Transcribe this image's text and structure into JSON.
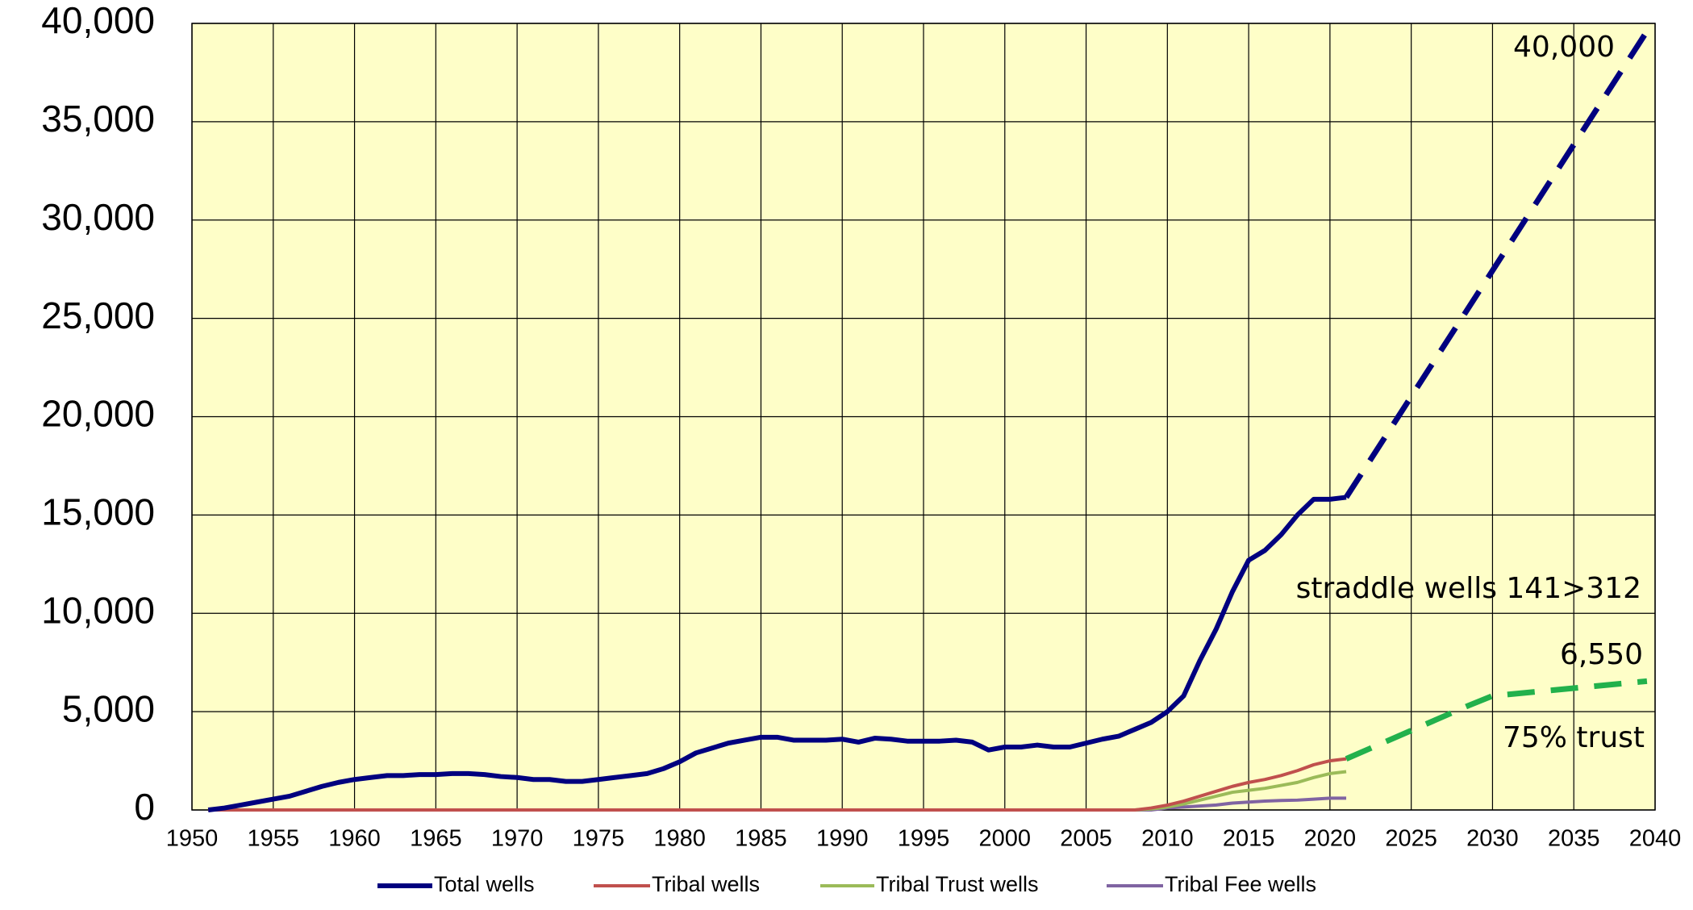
{
  "chart_data": {
    "type": "line",
    "x": [
      1951,
      1952,
      1953,
      1954,
      1955,
      1956,
      1957,
      1958,
      1959,
      1960,
      1961,
      1962,
      1963,
      1964,
      1965,
      1966,
      1967,
      1968,
      1969,
      1970,
      1971,
      1972,
      1973,
      1974,
      1975,
      1976,
      1977,
      1978,
      1979,
      1980,
      1981,
      1982,
      1983,
      1984,
      1985,
      1986,
      1987,
      1988,
      1989,
      1990,
      1991,
      1992,
      1993,
      1994,
      1995,
      1996,
      1997,
      1998,
      1999,
      2000,
      2001,
      2002,
      2003,
      2004,
      2005,
      2006,
      2007,
      2008,
      2009,
      2010,
      2011,
      2012,
      2013,
      2014,
      2015,
      2016,
      2017,
      2018,
      2019,
      2020,
      2021
    ],
    "series": [
      {
        "name": "Total wells",
        "color": "#00007f",
        "values": [
          0,
          100,
          250,
          400,
          550,
          700,
          950,
          1200,
          1400,
          1550,
          1650,
          1750,
          1750,
          1800,
          1800,
          1850,
          1850,
          1800,
          1700,
          1650,
          1550,
          1550,
          1450,
          1450,
          1550,
          1650,
          1750,
          1850,
          2100,
          2450,
          2900,
          3150,
          3400,
          3550,
          3700,
          3700,
          3550,
          3550,
          3550,
          3600,
          3450,
          3650,
          3600,
          3500,
          3500,
          3500,
          3550,
          3450,
          3050,
          3200,
          3200,
          3300,
          3200,
          3200,
          3400,
          3600,
          3750,
          4100,
          4450,
          5000,
          5800,
          7600,
          9200,
          11100,
          12700,
          13200,
          14000,
          15000,
          15800,
          15800,
          15900
        ]
      },
      {
        "name": "Tribal wells",
        "color": "#c0504d",
        "values": [
          0,
          0,
          0,
          0,
          0,
          0,
          0,
          0,
          0,
          0,
          0,
          0,
          0,
          0,
          0,
          0,
          0,
          0,
          0,
          0,
          0,
          0,
          0,
          0,
          0,
          0,
          0,
          0,
          0,
          0,
          0,
          0,
          0,
          0,
          0,
          0,
          0,
          0,
          0,
          0,
          0,
          0,
          0,
          0,
          0,
          0,
          0,
          0,
          0,
          0,
          0,
          0,
          0,
          0,
          0,
          0,
          0,
          0,
          100,
          250,
          450,
          700,
          950,
          1200,
          1400,
          1550,
          1750,
          2000,
          2300,
          2500,
          2600
        ]
      },
      {
        "name": "Tribal Trust wells",
        "color": "#9bbb59",
        "values": [
          0,
          0,
          0,
          0,
          0,
          0,
          0,
          0,
          0,
          0,
          0,
          0,
          0,
          0,
          0,
          0,
          0,
          0,
          0,
          0,
          0,
          0,
          0,
          0,
          0,
          0,
          0,
          0,
          0,
          0,
          0,
          0,
          0,
          0,
          0,
          0,
          0,
          0,
          0,
          0,
          0,
          0,
          0,
          0,
          0,
          0,
          0,
          0,
          0,
          0,
          0,
          0,
          0,
          0,
          0,
          0,
          0,
          0,
          50,
          150,
          300,
          500,
          700,
          900,
          1000,
          1100,
          1250,
          1400,
          1650,
          1850,
          1950
        ]
      },
      {
        "name": "Tribal Fee wells",
        "color": "#8064a2",
        "values": [
          0,
          0,
          0,
          0,
          0,
          0,
          0,
          0,
          0,
          0,
          0,
          0,
          0,
          0,
          0,
          0,
          0,
          0,
          0,
          0,
          0,
          0,
          0,
          0,
          0,
          0,
          0,
          0,
          0,
          0,
          0,
          0,
          0,
          0,
          0,
          0,
          0,
          0,
          0,
          0,
          0,
          0,
          0,
          0,
          0,
          0,
          0,
          0,
          0,
          0,
          0,
          0,
          0,
          0,
          0,
          0,
          0,
          0,
          0,
          100,
          150,
          200,
          250,
          350,
          400,
          450,
          480,
          500,
          550,
          600,
          600
        ]
      }
    ],
    "projections": [
      {
        "color": "#00007f",
        "x": [
          2021,
          2039.5
        ],
        "values": [
          15900,
          39600
        ]
      },
      {
        "color": "#22b14c",
        "x": [
          2021,
          2028.5,
          2030,
          2039.5
        ],
        "values": [
          2600,
          5300,
          5800,
          6550
        ]
      }
    ],
    "annotations": [
      "40,000",
      "straddle wells 141>312",
      "6,550",
      "75% trust"
    ],
    "xlim": [
      1950,
      2040
    ],
    "xticks": [
      1950,
      1955,
      1960,
      1965,
      1970,
      1975,
      1980,
      1985,
      1990,
      1995,
      2000,
      2005,
      2010,
      2015,
      2020,
      2025,
      2030,
      2035,
      2040
    ],
    "ylim": [
      0,
      40000
    ],
    "yticks": [
      0,
      {
        "value": 5000,
        "label": "5,000"
      },
      {
        "value": 10000,
        "label": "10,000"
      },
      {
        "value": 15000,
        "label": "15,000"
      },
      {
        "value": 20000,
        "label": "20,000"
      },
      {
        "value": 25000,
        "label": "25,000"
      },
      {
        "value": 30000,
        "label": "30,000"
      },
      {
        "value": 35000,
        "label": "35,000"
      },
      {
        "value": 40000,
        "label": "40,000"
      }
    ],
    "grid": true,
    "background": "#fefec8",
    "legend": "bottom"
  }
}
